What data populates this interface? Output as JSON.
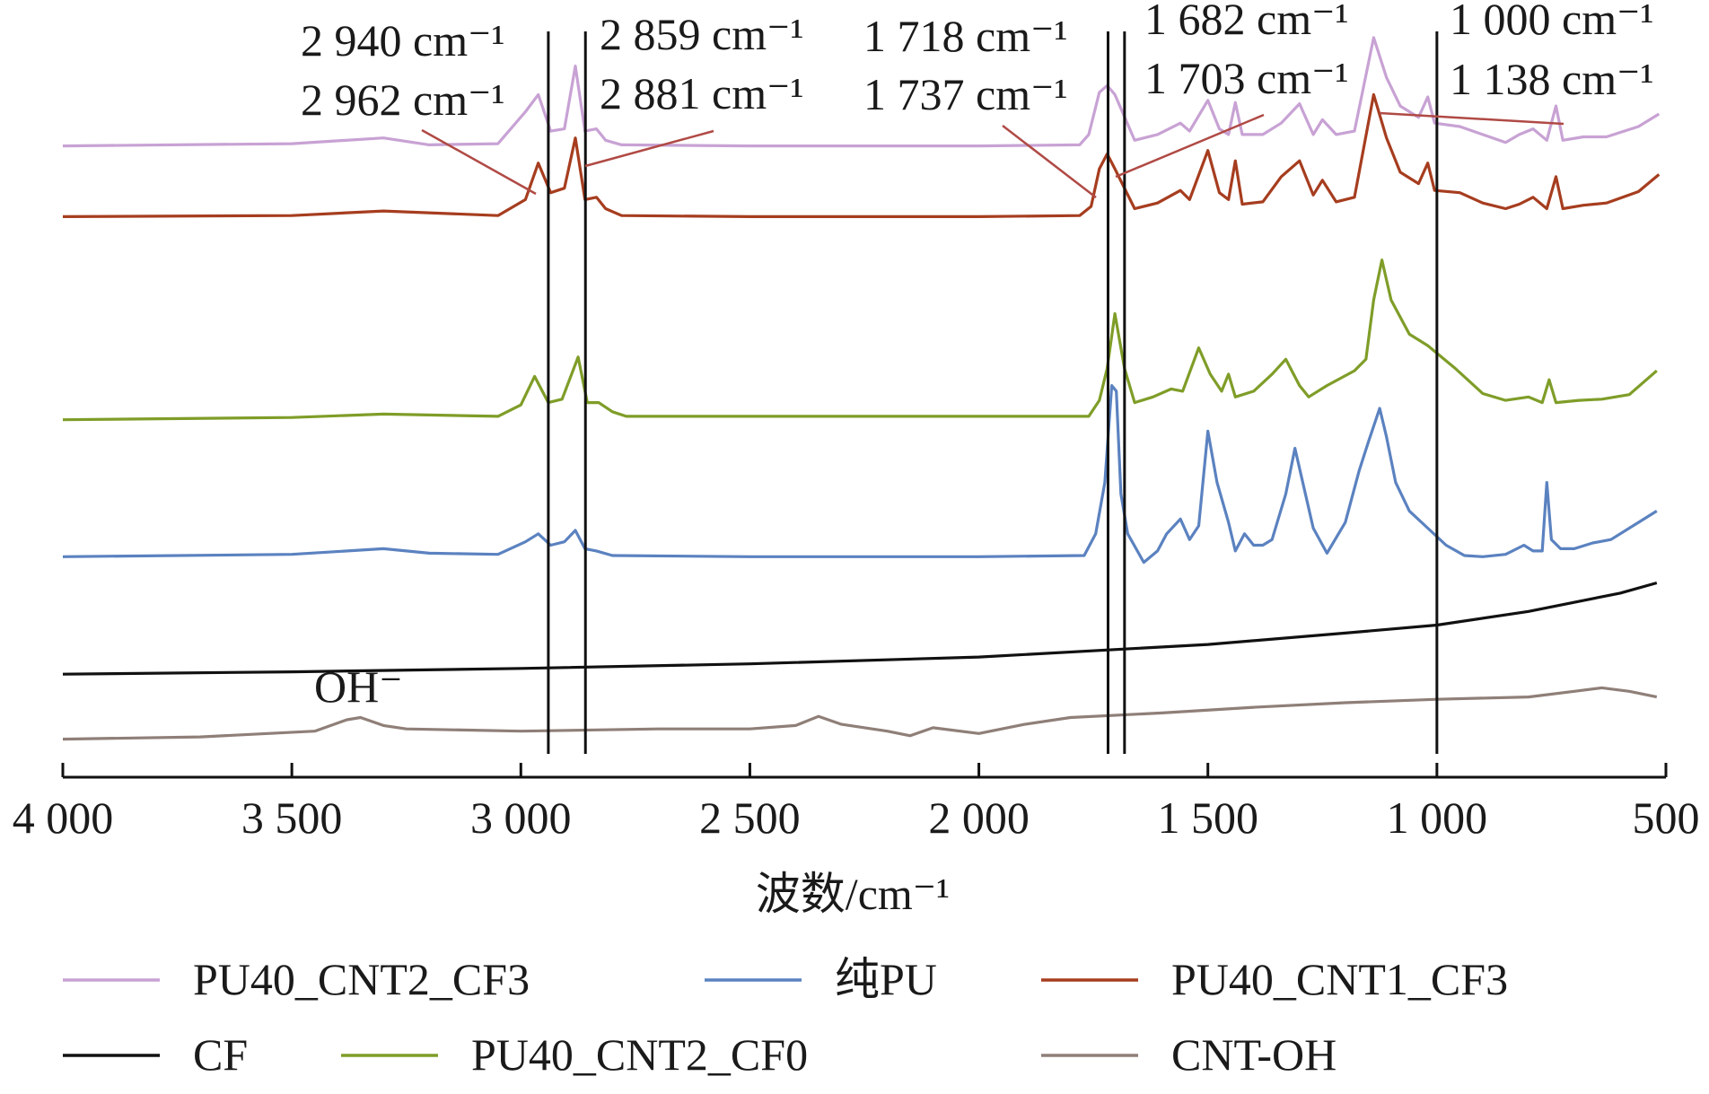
{
  "chart_data": {
    "type": "line",
    "title": "",
    "xlabel": "波数/cm⁻¹",
    "ylabel": "",
    "xlim": [
      4000,
      500
    ],
    "x_reversed": true,
    "x_ticks": [
      4000,
      3500,
      3000,
      2500,
      2000,
      1500,
      1000,
      500
    ],
    "x_tick_labels": [
      "4 000",
      "3 500",
      "3 000",
      "2 500",
      "2 000",
      "1 500",
      "1 000",
      "500"
    ],
    "ylim": [
      0,
      5.9
    ],
    "y_axis_visible": false,
    "grid": false,
    "legend_position": "bottom",
    "legend_order": [
      "PU40_CNT2_CF3",
      "纯PU",
      "PU40_CNT1_CF3",
      "CF",
      "PU40_CNT2_CF0",
      "CNT-OH"
    ],
    "reference_lines": [
      2940,
      2859,
      1718,
      1682,
      1000
    ],
    "annotations": [
      {
        "line1": "2 940 cm⁻¹",
        "line2": "2 962 cm⁻¹",
        "x": 2960
      },
      {
        "line1": "2 859 cm⁻¹",
        "line2": "2 881 cm⁻¹",
        "x": 2880
      },
      {
        "line1": "1 718 cm⁻¹",
        "line2": "1 737 cm⁻¹",
        "x": 1737
      },
      {
        "line1": "1 682 cm⁻¹",
        "line2": "1 703 cm⁻¹",
        "x": 1703
      },
      {
        "line1": "1 000 cm⁻¹",
        "line2": "1 138 cm⁻¹",
        "x": 1138
      }
    ],
    "oh_label": "OH⁻",
    "series": [
      {
        "name": "PU40_CNT2_CF3",
        "color": "#c8a2d4",
        "points": [
          [
            4000,
            5.25
          ],
          [
            3500,
            5.27
          ],
          [
            3300,
            5.32
          ],
          [
            3200,
            5.26
          ],
          [
            3050,
            5.27
          ],
          [
            2990,
            5.55
          ],
          [
            2962,
            5.7
          ],
          [
            2935,
            5.38
          ],
          [
            2905,
            5.4
          ],
          [
            2881,
            5.95
          ],
          [
            2860,
            5.38
          ],
          [
            2835,
            5.4
          ],
          [
            2815,
            5.3
          ],
          [
            2780,
            5.26
          ],
          [
            2500,
            5.25
          ],
          [
            2000,
            5.25
          ],
          [
            1780,
            5.26
          ],
          [
            1760,
            5.35
          ],
          [
            1737,
            5.72
          ],
          [
            1720,
            5.78
          ],
          [
            1703,
            5.7
          ],
          [
            1660,
            5.3
          ],
          [
            1610,
            5.35
          ],
          [
            1560,
            5.45
          ],
          [
            1540,
            5.38
          ],
          [
            1500,
            5.65
          ],
          [
            1475,
            5.4
          ],
          [
            1455,
            5.35
          ],
          [
            1440,
            5.63
          ],
          [
            1425,
            5.35
          ],
          [
            1380,
            5.35
          ],
          [
            1340,
            5.45
          ],
          [
            1300,
            5.62
          ],
          [
            1270,
            5.35
          ],
          [
            1250,
            5.48
          ],
          [
            1220,
            5.35
          ],
          [
            1180,
            5.38
          ],
          [
            1138,
            6.2
          ],
          [
            1110,
            5.85
          ],
          [
            1080,
            5.6
          ],
          [
            1040,
            5.5
          ],
          [
            1020,
            5.68
          ],
          [
            1005,
            5.45
          ],
          [
            950,
            5.42
          ],
          [
            900,
            5.35
          ],
          [
            850,
            5.28
          ],
          [
            820,
            5.35
          ],
          [
            790,
            5.4
          ],
          [
            760,
            5.3
          ],
          [
            740,
            5.6
          ],
          [
            725,
            5.3
          ],
          [
            680,
            5.33
          ],
          [
            630,
            5.33
          ],
          [
            560,
            5.42
          ],
          [
            515,
            5.53
          ]
        ]
      },
      {
        "name": "PU40_CNT1_CF3",
        "color": "#a63d1f",
        "points": [
          [
            4000,
            4.63
          ],
          [
            3500,
            4.64
          ],
          [
            3300,
            4.68
          ],
          [
            3050,
            4.64
          ],
          [
            2990,
            4.78
          ],
          [
            2962,
            5.1
          ],
          [
            2935,
            4.84
          ],
          [
            2905,
            4.88
          ],
          [
            2881,
            5.32
          ],
          [
            2860,
            4.78
          ],
          [
            2835,
            4.8
          ],
          [
            2815,
            4.7
          ],
          [
            2780,
            4.64
          ],
          [
            2500,
            4.63
          ],
          [
            2000,
            4.63
          ],
          [
            1780,
            4.64
          ],
          [
            1755,
            4.72
          ],
          [
            1737,
            5.05
          ],
          [
            1720,
            5.18
          ],
          [
            1703,
            5.05
          ],
          [
            1660,
            4.7
          ],
          [
            1610,
            4.75
          ],
          [
            1560,
            4.86
          ],
          [
            1540,
            4.78
          ],
          [
            1500,
            5.21
          ],
          [
            1475,
            4.84
          ],
          [
            1455,
            4.78
          ],
          [
            1440,
            5.12
          ],
          [
            1425,
            4.74
          ],
          [
            1380,
            4.76
          ],
          [
            1340,
            4.98
          ],
          [
            1300,
            5.12
          ],
          [
            1270,
            4.82
          ],
          [
            1250,
            4.95
          ],
          [
            1220,
            4.76
          ],
          [
            1180,
            4.8
          ],
          [
            1138,
            5.7
          ],
          [
            1110,
            5.32
          ],
          [
            1080,
            5.02
          ],
          [
            1040,
            4.92
          ],
          [
            1020,
            5.1
          ],
          [
            1005,
            4.86
          ],
          [
            950,
            4.84
          ],
          [
            900,
            4.75
          ],
          [
            850,
            4.7
          ],
          [
            820,
            4.74
          ],
          [
            790,
            4.8
          ],
          [
            760,
            4.7
          ],
          [
            740,
            4.98
          ],
          [
            725,
            4.7
          ],
          [
            680,
            4.73
          ],
          [
            630,
            4.75
          ],
          [
            560,
            4.85
          ],
          [
            515,
            5.0
          ]
        ]
      },
      {
        "name": "PU40_CNT2_CF0",
        "color": "#7f9d28",
        "points": [
          [
            4000,
            2.85
          ],
          [
            3500,
            2.87
          ],
          [
            3300,
            2.9
          ],
          [
            3050,
            2.88
          ],
          [
            3000,
            2.98
          ],
          [
            2970,
            3.23
          ],
          [
            2940,
            3.0
          ],
          [
            2910,
            3.03
          ],
          [
            2875,
            3.4
          ],
          [
            2855,
            3.0
          ],
          [
            2830,
            3.0
          ],
          [
            2800,
            2.92
          ],
          [
            2770,
            2.88
          ],
          [
            2500,
            2.88
          ],
          [
            2000,
            2.88
          ],
          [
            1760,
            2.88
          ],
          [
            1737,
            3.02
          ],
          [
            1720,
            3.3
          ],
          [
            1703,
            3.78
          ],
          [
            1682,
            3.3
          ],
          [
            1660,
            3.0
          ],
          [
            1620,
            3.05
          ],
          [
            1580,
            3.12
          ],
          [
            1555,
            3.1
          ],
          [
            1520,
            3.48
          ],
          [
            1495,
            3.25
          ],
          [
            1470,
            3.1
          ],
          [
            1455,
            3.25
          ],
          [
            1440,
            3.05
          ],
          [
            1400,
            3.1
          ],
          [
            1360,
            3.25
          ],
          [
            1330,
            3.38
          ],
          [
            1300,
            3.15
          ],
          [
            1280,
            3.05
          ],
          [
            1240,
            3.15
          ],
          [
            1180,
            3.28
          ],
          [
            1155,
            3.38
          ],
          [
            1138,
            3.9
          ],
          [
            1120,
            4.25
          ],
          [
            1100,
            3.9
          ],
          [
            1060,
            3.6
          ],
          [
            1020,
            3.5
          ],
          [
            960,
            3.3
          ],
          [
            900,
            3.08
          ],
          [
            850,
            3.02
          ],
          [
            800,
            3.05
          ],
          [
            770,
            3.0
          ],
          [
            755,
            3.2
          ],
          [
            740,
            3.0
          ],
          [
            690,
            3.02
          ],
          [
            640,
            3.03
          ],
          [
            580,
            3.07
          ],
          [
            520,
            3.28
          ]
        ]
      },
      {
        "name": "纯PU",
        "color": "#5b82c0",
        "points": [
          [
            4000,
            1.65
          ],
          [
            3500,
            1.67
          ],
          [
            3300,
            1.72
          ],
          [
            3200,
            1.68
          ],
          [
            3050,
            1.67
          ],
          [
            2990,
            1.78
          ],
          [
            2962,
            1.85
          ],
          [
            2935,
            1.75
          ],
          [
            2905,
            1.78
          ],
          [
            2881,
            1.88
          ],
          [
            2860,
            1.72
          ],
          [
            2835,
            1.7
          ],
          [
            2800,
            1.66
          ],
          [
            2500,
            1.65
          ],
          [
            2000,
            1.65
          ],
          [
            1770,
            1.66
          ],
          [
            1745,
            1.85
          ],
          [
            1725,
            2.3
          ],
          [
            1710,
            3.15
          ],
          [
            1700,
            3.1
          ],
          [
            1690,
            2.2
          ],
          [
            1675,
            1.85
          ],
          [
            1640,
            1.6
          ],
          [
            1610,
            1.7
          ],
          [
            1590,
            1.85
          ],
          [
            1560,
            1.98
          ],
          [
            1540,
            1.8
          ],
          [
            1520,
            1.92
          ],
          [
            1500,
            2.75
          ],
          [
            1480,
            2.3
          ],
          [
            1455,
            1.95
          ],
          [
            1440,
            1.7
          ],
          [
            1420,
            1.85
          ],
          [
            1400,
            1.75
          ],
          [
            1380,
            1.75
          ],
          [
            1360,
            1.8
          ],
          [
            1330,
            2.2
          ],
          [
            1310,
            2.6
          ],
          [
            1290,
            2.25
          ],
          [
            1270,
            1.9
          ],
          [
            1240,
            1.68
          ],
          [
            1200,
            1.95
          ],
          [
            1170,
            2.4
          ],
          [
            1150,
            2.65
          ],
          [
            1125,
            2.95
          ],
          [
            1110,
            2.7
          ],
          [
            1090,
            2.3
          ],
          [
            1060,
            2.05
          ],
          [
            1020,
            1.9
          ],
          [
            980,
            1.75
          ],
          [
            940,
            1.66
          ],
          [
            900,
            1.65
          ],
          [
            850,
            1.67
          ],
          [
            810,
            1.75
          ],
          [
            790,
            1.7
          ],
          [
            770,
            1.7
          ],
          [
            760,
            2.3
          ],
          [
            750,
            1.8
          ],
          [
            730,
            1.72
          ],
          [
            700,
            1.72
          ],
          [
            660,
            1.77
          ],
          [
            620,
            1.8
          ],
          [
            560,
            1.95
          ],
          [
            520,
            2.05
          ]
        ]
      },
      {
        "name": "CF",
        "color": "#111111",
        "points": [
          [
            4000,
            0.62
          ],
          [
            3500,
            0.64
          ],
          [
            3000,
            0.67
          ],
          [
            2500,
            0.71
          ],
          [
            2000,
            0.77
          ],
          [
            1500,
            0.88
          ],
          [
            1200,
            0.98
          ],
          [
            1000,
            1.05
          ],
          [
            800,
            1.17
          ],
          [
            600,
            1.33
          ],
          [
            520,
            1.42
          ]
        ]
      },
      {
        "name": "CNT-OH",
        "color": "#8f7f78",
        "points": [
          [
            4000,
            0.05
          ],
          [
            3700,
            0.07
          ],
          [
            3450,
            0.12
          ],
          [
            3380,
            0.22
          ],
          [
            3350,
            0.24
          ],
          [
            3300,
            0.17
          ],
          [
            3250,
            0.14
          ],
          [
            3000,
            0.12
          ],
          [
            2700,
            0.14
          ],
          [
            2500,
            0.14
          ],
          [
            2400,
            0.17
          ],
          [
            2350,
            0.25
          ],
          [
            2300,
            0.18
          ],
          [
            2200,
            0.12
          ],
          [
            2150,
            0.08
          ],
          [
            2100,
            0.15
          ],
          [
            2000,
            0.1
          ],
          [
            1900,
            0.18
          ],
          [
            1800,
            0.24
          ],
          [
            1600,
            0.28
          ],
          [
            1400,
            0.33
          ],
          [
            1200,
            0.37
          ],
          [
            1000,
            0.4
          ],
          [
            800,
            0.42
          ],
          [
            700,
            0.47
          ],
          [
            640,
            0.5
          ],
          [
            580,
            0.47
          ],
          [
            520,
            0.42
          ]
        ]
      }
    ]
  }
}
